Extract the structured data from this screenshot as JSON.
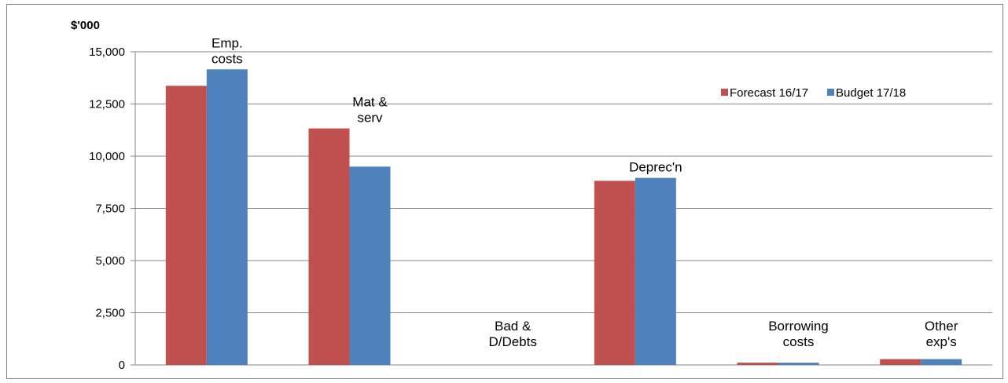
{
  "chart_data": {
    "type": "bar",
    "unit_label": "$'000",
    "categories": [
      [
        "Emp.",
        "costs"
      ],
      [
        "Mat &",
        "serv"
      ],
      [
        "Bad &",
        "D/Debts"
      ],
      [
        "Deprec'n"
      ],
      [
        "Borrowing",
        "costs"
      ],
      [
        "Other",
        "exp's"
      ]
    ],
    "series": [
      {
        "name": "Forecast 16/17",
        "color": "#c0504d",
        "values": [
          13370,
          11330,
          0,
          8820,
          110,
          280
        ]
      },
      {
        "name": "Budget 17/18",
        "color": "#4f81bd",
        "values": [
          14160,
          9500,
          0,
          8960,
          110,
          280
        ]
      }
    ],
    "ylim": [
      0,
      15000
    ],
    "yticks": [
      "0",
      "2,500",
      "5,000",
      "7,500",
      "10,000",
      "12,500",
      "15,000"
    ],
    "legend_position": "top-right",
    "grid": true
  }
}
